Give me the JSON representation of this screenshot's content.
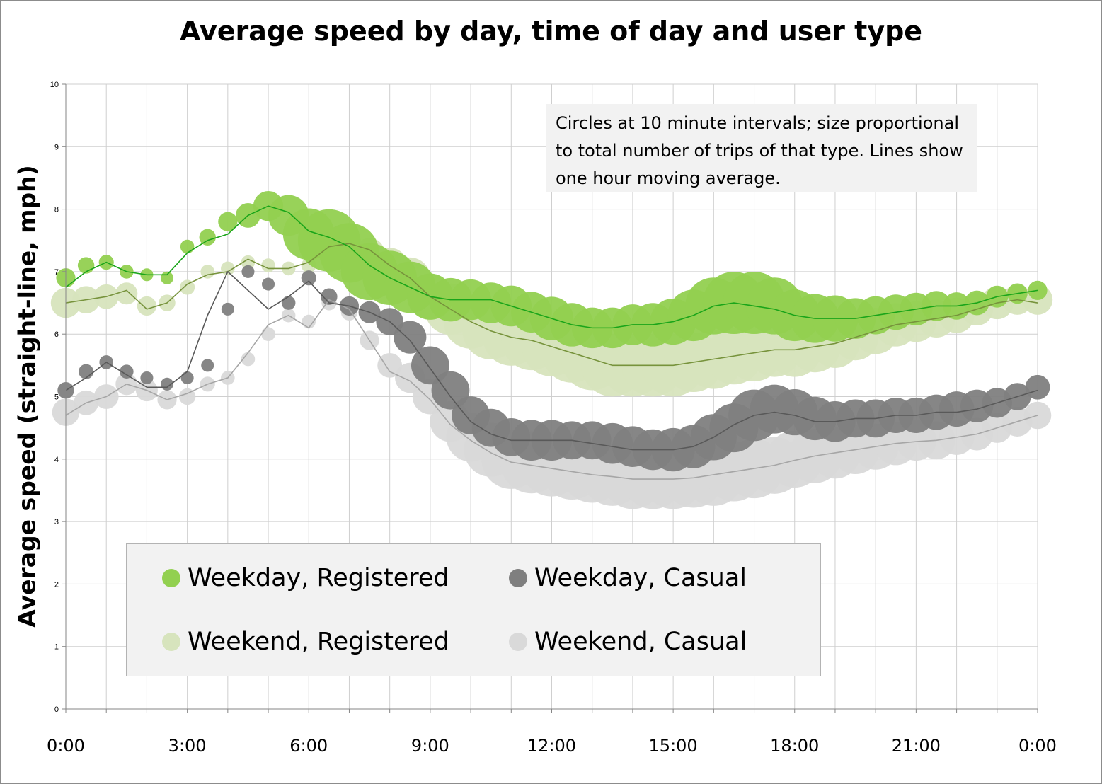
{
  "chart_data": {
    "type": "scatter",
    "title": "Average speed by day, time of day and user type",
    "ylabel": "Average speed (straight-line, mph)",
    "xlabel": "",
    "ylim": [
      0,
      10
    ],
    "xlim": [
      0,
      24
    ],
    "grid": true,
    "x_tick_labels": [
      "0:00",
      "3:00",
      "6:00",
      "9:00",
      "12:00",
      "15:00",
      "18:00",
      "21:00",
      "0:00"
    ],
    "y_tick_labels": [
      "0",
      "1",
      "2",
      "3",
      "4",
      "5",
      "6",
      "7",
      "8",
      "9",
      "10"
    ],
    "annotation": "Circles at 10 minute intervals; size proportional to total number of trips of that type. Lines show one hour moving average.",
    "legend_position": "bottom-left",
    "x_unit": "hour of day",
    "series": [
      {
        "name": "Weekday, Registered",
        "color": "#92d050",
        "line_color": "#1aa51a",
        "x": [
          0,
          0.5,
          1,
          1.5,
          2,
          2.5,
          3,
          3.5,
          4,
          4.5,
          5,
          5.5,
          6,
          6.5,
          7,
          7.5,
          8,
          8.5,
          9,
          9.5,
          10,
          10.5,
          11,
          11.5,
          12,
          12.5,
          13,
          13.5,
          14,
          14.5,
          15,
          15.5,
          16,
          16.5,
          17,
          17.5,
          18,
          18.5,
          19,
          19.5,
          20,
          20.5,
          21,
          21.5,
          22,
          22.5,
          23,
          23.5,
          24
        ],
        "y": [
          6.9,
          7.1,
          7.15,
          7.0,
          6.95,
          6.9,
          7.4,
          7.55,
          7.8,
          7.9,
          8.05,
          7.9,
          7.6,
          7.5,
          7.3,
          7.0,
          6.9,
          6.75,
          6.6,
          6.55,
          6.55,
          6.5,
          6.45,
          6.35,
          6.25,
          6.15,
          6.1,
          6.1,
          6.15,
          6.15,
          6.2,
          6.3,
          6.45,
          6.5,
          6.5,
          6.45,
          6.3,
          6.25,
          6.25,
          6.25,
          6.3,
          6.35,
          6.4,
          6.45,
          6.45,
          6.5,
          6.6,
          6.65,
          6.7
        ],
        "trips": [
          0.2,
          0.15,
          0.12,
          0.1,
          0.08,
          0.08,
          0.1,
          0.15,
          0.2,
          0.3,
          0.4,
          0.6,
          0.8,
          1.0,
          0.95,
          0.9,
          0.85,
          0.8,
          0.7,
          0.65,
          0.6,
          0.6,
          0.6,
          0.6,
          0.65,
          0.65,
          0.6,
          0.6,
          0.6,
          0.65,
          0.7,
          0.8,
          0.9,
          1.0,
          1.0,
          0.9,
          0.8,
          0.75,
          0.7,
          0.6,
          0.55,
          0.5,
          0.45,
          0.4,
          0.35,
          0.3,
          0.25,
          0.22,
          0.2
        ],
        "moving_average": [
          6.75,
          7.0,
          7.15,
          7.0,
          6.95,
          6.95,
          7.3,
          7.5,
          7.6,
          7.9,
          8.05,
          7.95,
          7.65,
          7.55,
          7.4,
          7.1,
          6.9,
          6.75,
          6.6,
          6.55,
          6.55,
          6.55,
          6.45,
          6.35,
          6.25,
          6.15,
          6.1,
          6.1,
          6.15,
          6.15,
          6.2,
          6.3,
          6.45,
          6.5,
          6.45,
          6.4,
          6.3,
          6.25,
          6.25,
          6.25,
          6.3,
          6.35,
          6.4,
          6.45,
          6.45,
          6.5,
          6.6,
          6.65,
          6.7
        ]
      },
      {
        "name": "Weekday, Casual",
        "color": "#7f7f7f",
        "line_color": "#595959",
        "x": [
          0,
          0.5,
          1,
          1.5,
          2,
          2.5,
          3,
          3.5,
          4,
          4.5,
          5,
          5.5,
          6,
          6.5,
          7,
          7.5,
          8,
          8.5,
          9,
          9.5,
          10,
          10.5,
          11,
          11.5,
          12,
          12.5,
          13,
          13.5,
          14,
          14.5,
          15,
          15.5,
          16,
          16.5,
          17,
          17.5,
          18,
          18.5,
          19,
          19.5,
          20,
          20.5,
          21,
          21.5,
          22,
          22.5,
          23,
          23.5,
          24
        ],
        "y": [
          5.1,
          5.4,
          5.55,
          5.4,
          5.3,
          5.2,
          5.3,
          5.5,
          6.4,
          7.0,
          6.8,
          6.5,
          6.9,
          6.6,
          6.45,
          6.35,
          6.2,
          5.95,
          5.5,
          5.1,
          4.7,
          4.5,
          4.35,
          4.3,
          4.3,
          4.3,
          4.3,
          4.25,
          4.2,
          4.15,
          4.15,
          4.2,
          4.35,
          4.5,
          4.7,
          4.8,
          4.75,
          4.65,
          4.6,
          4.65,
          4.65,
          4.7,
          4.7,
          4.75,
          4.8,
          4.85,
          4.9,
          5.0,
          5.15
        ],
        "trips": [
          0.15,
          0.12,
          0.1,
          0.1,
          0.08,
          0.08,
          0.08,
          0.08,
          0.08,
          0.08,
          0.08,
          0.1,
          0.12,
          0.15,
          0.2,
          0.25,
          0.35,
          0.45,
          0.55,
          0.55,
          0.55,
          0.55,
          0.55,
          0.6,
          0.6,
          0.55,
          0.55,
          0.6,
          0.6,
          0.6,
          0.65,
          0.65,
          0.7,
          0.75,
          0.8,
          0.75,
          0.7,
          0.65,
          0.6,
          0.55,
          0.55,
          0.5,
          0.5,
          0.5,
          0.5,
          0.45,
          0.4,
          0.35,
          0.3
        ],
        "moving_average": [
          5.1,
          5.3,
          5.55,
          5.35,
          5.15,
          5.15,
          5.4,
          6.3,
          7.0,
          6.7,
          6.4,
          6.6,
          6.85,
          6.5,
          6.45,
          6.35,
          6.2,
          5.9,
          5.45,
          5.0,
          4.6,
          4.4,
          4.3,
          4.3,
          4.3,
          4.3,
          4.25,
          4.2,
          4.15,
          4.15,
          4.15,
          4.2,
          4.35,
          4.55,
          4.7,
          4.75,
          4.7,
          4.6,
          4.6,
          4.65,
          4.65,
          4.7,
          4.7,
          4.75,
          4.75,
          4.8,
          4.9,
          5.0,
          5.1
        ]
      },
      {
        "name": "Weekend, Registered",
        "color": "#d7e4bd",
        "line_color": "#77933c",
        "x": [
          0,
          0.5,
          1,
          1.5,
          2,
          2.5,
          3,
          3.5,
          4,
          4.5,
          5,
          5.5,
          6,
          6.5,
          7,
          7.5,
          8,
          8.5,
          9,
          9.5,
          10,
          10.5,
          11,
          11.5,
          12,
          12.5,
          13,
          13.5,
          14,
          14.5,
          15,
          15.5,
          16,
          16.5,
          17,
          17.5,
          18,
          18.5,
          19,
          19.5,
          20,
          20.5,
          21,
          21.5,
          22,
          22.5,
          23,
          23.5,
          24
        ],
        "y": [
          6.5,
          6.55,
          6.6,
          6.65,
          6.45,
          6.5,
          6.75,
          7.0,
          7.05,
          7.15,
          7.1,
          7.05,
          7.1,
          7.35,
          7.45,
          7.3,
          7.1,
          6.9,
          6.6,
          6.4,
          6.2,
          6.05,
          5.95,
          5.9,
          5.8,
          5.7,
          5.6,
          5.5,
          5.5,
          5.5,
          5.5,
          5.55,
          5.6,
          5.65,
          5.7,
          5.75,
          5.75,
          5.8,
          5.85,
          5.95,
          6.05,
          6.15,
          6.2,
          6.25,
          6.3,
          6.4,
          6.5,
          6.55,
          6.55
        ],
        "trips": [
          0.4,
          0.35,
          0.3,
          0.25,
          0.2,
          0.15,
          0.12,
          0.1,
          0.1,
          0.1,
          0.1,
          0.1,
          0.12,
          0.2,
          0.3,
          0.4,
          0.5,
          0.6,
          0.7,
          0.8,
          0.85,
          0.9,
          0.9,
          0.95,
          0.95,
          0.95,
          1.0,
          1.0,
          1.0,
          1.0,
          1.0,
          0.95,
          0.95,
          0.9,
          0.9,
          0.85,
          0.85,
          0.8,
          0.75,
          0.7,
          0.7,
          0.65,
          0.6,
          0.55,
          0.5,
          0.45,
          0.45,
          0.4,
          0.4
        ],
        "moving_average": [
          6.5,
          6.55,
          6.6,
          6.7,
          6.4,
          6.5,
          6.8,
          6.95,
          7.0,
          7.2,
          7.05,
          7.05,
          7.15,
          7.4,
          7.45,
          7.35,
          7.1,
          6.9,
          6.6,
          6.4,
          6.2,
          6.05,
          5.95,
          5.9,
          5.8,
          5.7,
          5.6,
          5.5,
          5.5,
          5.5,
          5.5,
          5.55,
          5.6,
          5.65,
          5.7,
          5.75,
          5.75,
          5.8,
          5.85,
          5.95,
          6.05,
          6.15,
          6.2,
          6.25,
          6.3,
          6.4,
          6.5,
          6.55,
          6.5
        ]
      },
      {
        "name": "Weekend, Casual",
        "color": "#d9d9d9",
        "line_color": "#a6a6a6",
        "x": [
          0,
          0.5,
          1,
          1.5,
          2,
          2.5,
          3,
          3.5,
          4,
          4.5,
          5,
          5.5,
          6,
          6.5,
          7,
          7.5,
          8,
          8.5,
          9,
          9.5,
          10,
          10.5,
          11,
          11.5,
          12,
          12.5,
          13,
          13.5,
          14,
          14.5,
          15,
          15.5,
          16,
          16.5,
          17,
          17.5,
          18,
          18.5,
          19,
          19.5,
          20,
          20.5,
          21,
          21.5,
          22,
          22.5,
          23,
          23.5,
          24
        ],
        "y": [
          4.75,
          4.9,
          5.0,
          5.2,
          5.1,
          4.95,
          5.0,
          5.2,
          5.3,
          5.6,
          6.0,
          6.3,
          6.2,
          6.5,
          6.35,
          5.9,
          5.5,
          5.3,
          5.0,
          4.6,
          4.35,
          4.15,
          4.0,
          3.95,
          3.9,
          3.85,
          3.8,
          3.75,
          3.7,
          3.7,
          3.7,
          3.72,
          3.75,
          3.8,
          3.85,
          3.9,
          4.0,
          4.05,
          4.1,
          4.15,
          4.2,
          4.25,
          4.3,
          4.3,
          4.35,
          4.4,
          4.5,
          4.6,
          4.7
        ],
        "trips": [
          0.35,
          0.3,
          0.3,
          0.25,
          0.25,
          0.2,
          0.15,
          0.12,
          0.1,
          0.1,
          0.1,
          0.1,
          0.1,
          0.12,
          0.15,
          0.2,
          0.3,
          0.4,
          0.5,
          0.6,
          0.75,
          0.85,
          0.95,
          1.0,
          1.0,
          1.0,
          1.0,
          1.0,
          1.0,
          1.0,
          1.0,
          1.0,
          1.0,
          0.95,
          0.95,
          0.9,
          0.9,
          0.85,
          0.8,
          0.75,
          0.7,
          0.65,
          0.6,
          0.55,
          0.5,
          0.45,
          0.4,
          0.4,
          0.35
        ],
        "moving_average": [
          4.7,
          4.9,
          5.0,
          5.2,
          5.1,
          4.95,
          5.05,
          5.2,
          5.3,
          5.7,
          6.15,
          6.3,
          6.1,
          6.55,
          6.4,
          5.9,
          5.4,
          5.25,
          4.95,
          4.55,
          4.3,
          4.1,
          3.95,
          3.9,
          3.85,
          3.8,
          3.75,
          3.72,
          3.68,
          3.68,
          3.68,
          3.7,
          3.75,
          3.8,
          3.85,
          3.9,
          3.98,
          4.05,
          4.1,
          4.15,
          4.2,
          4.25,
          4.28,
          4.3,
          4.35,
          4.4,
          4.5,
          4.6,
          4.7
        ]
      }
    ]
  }
}
